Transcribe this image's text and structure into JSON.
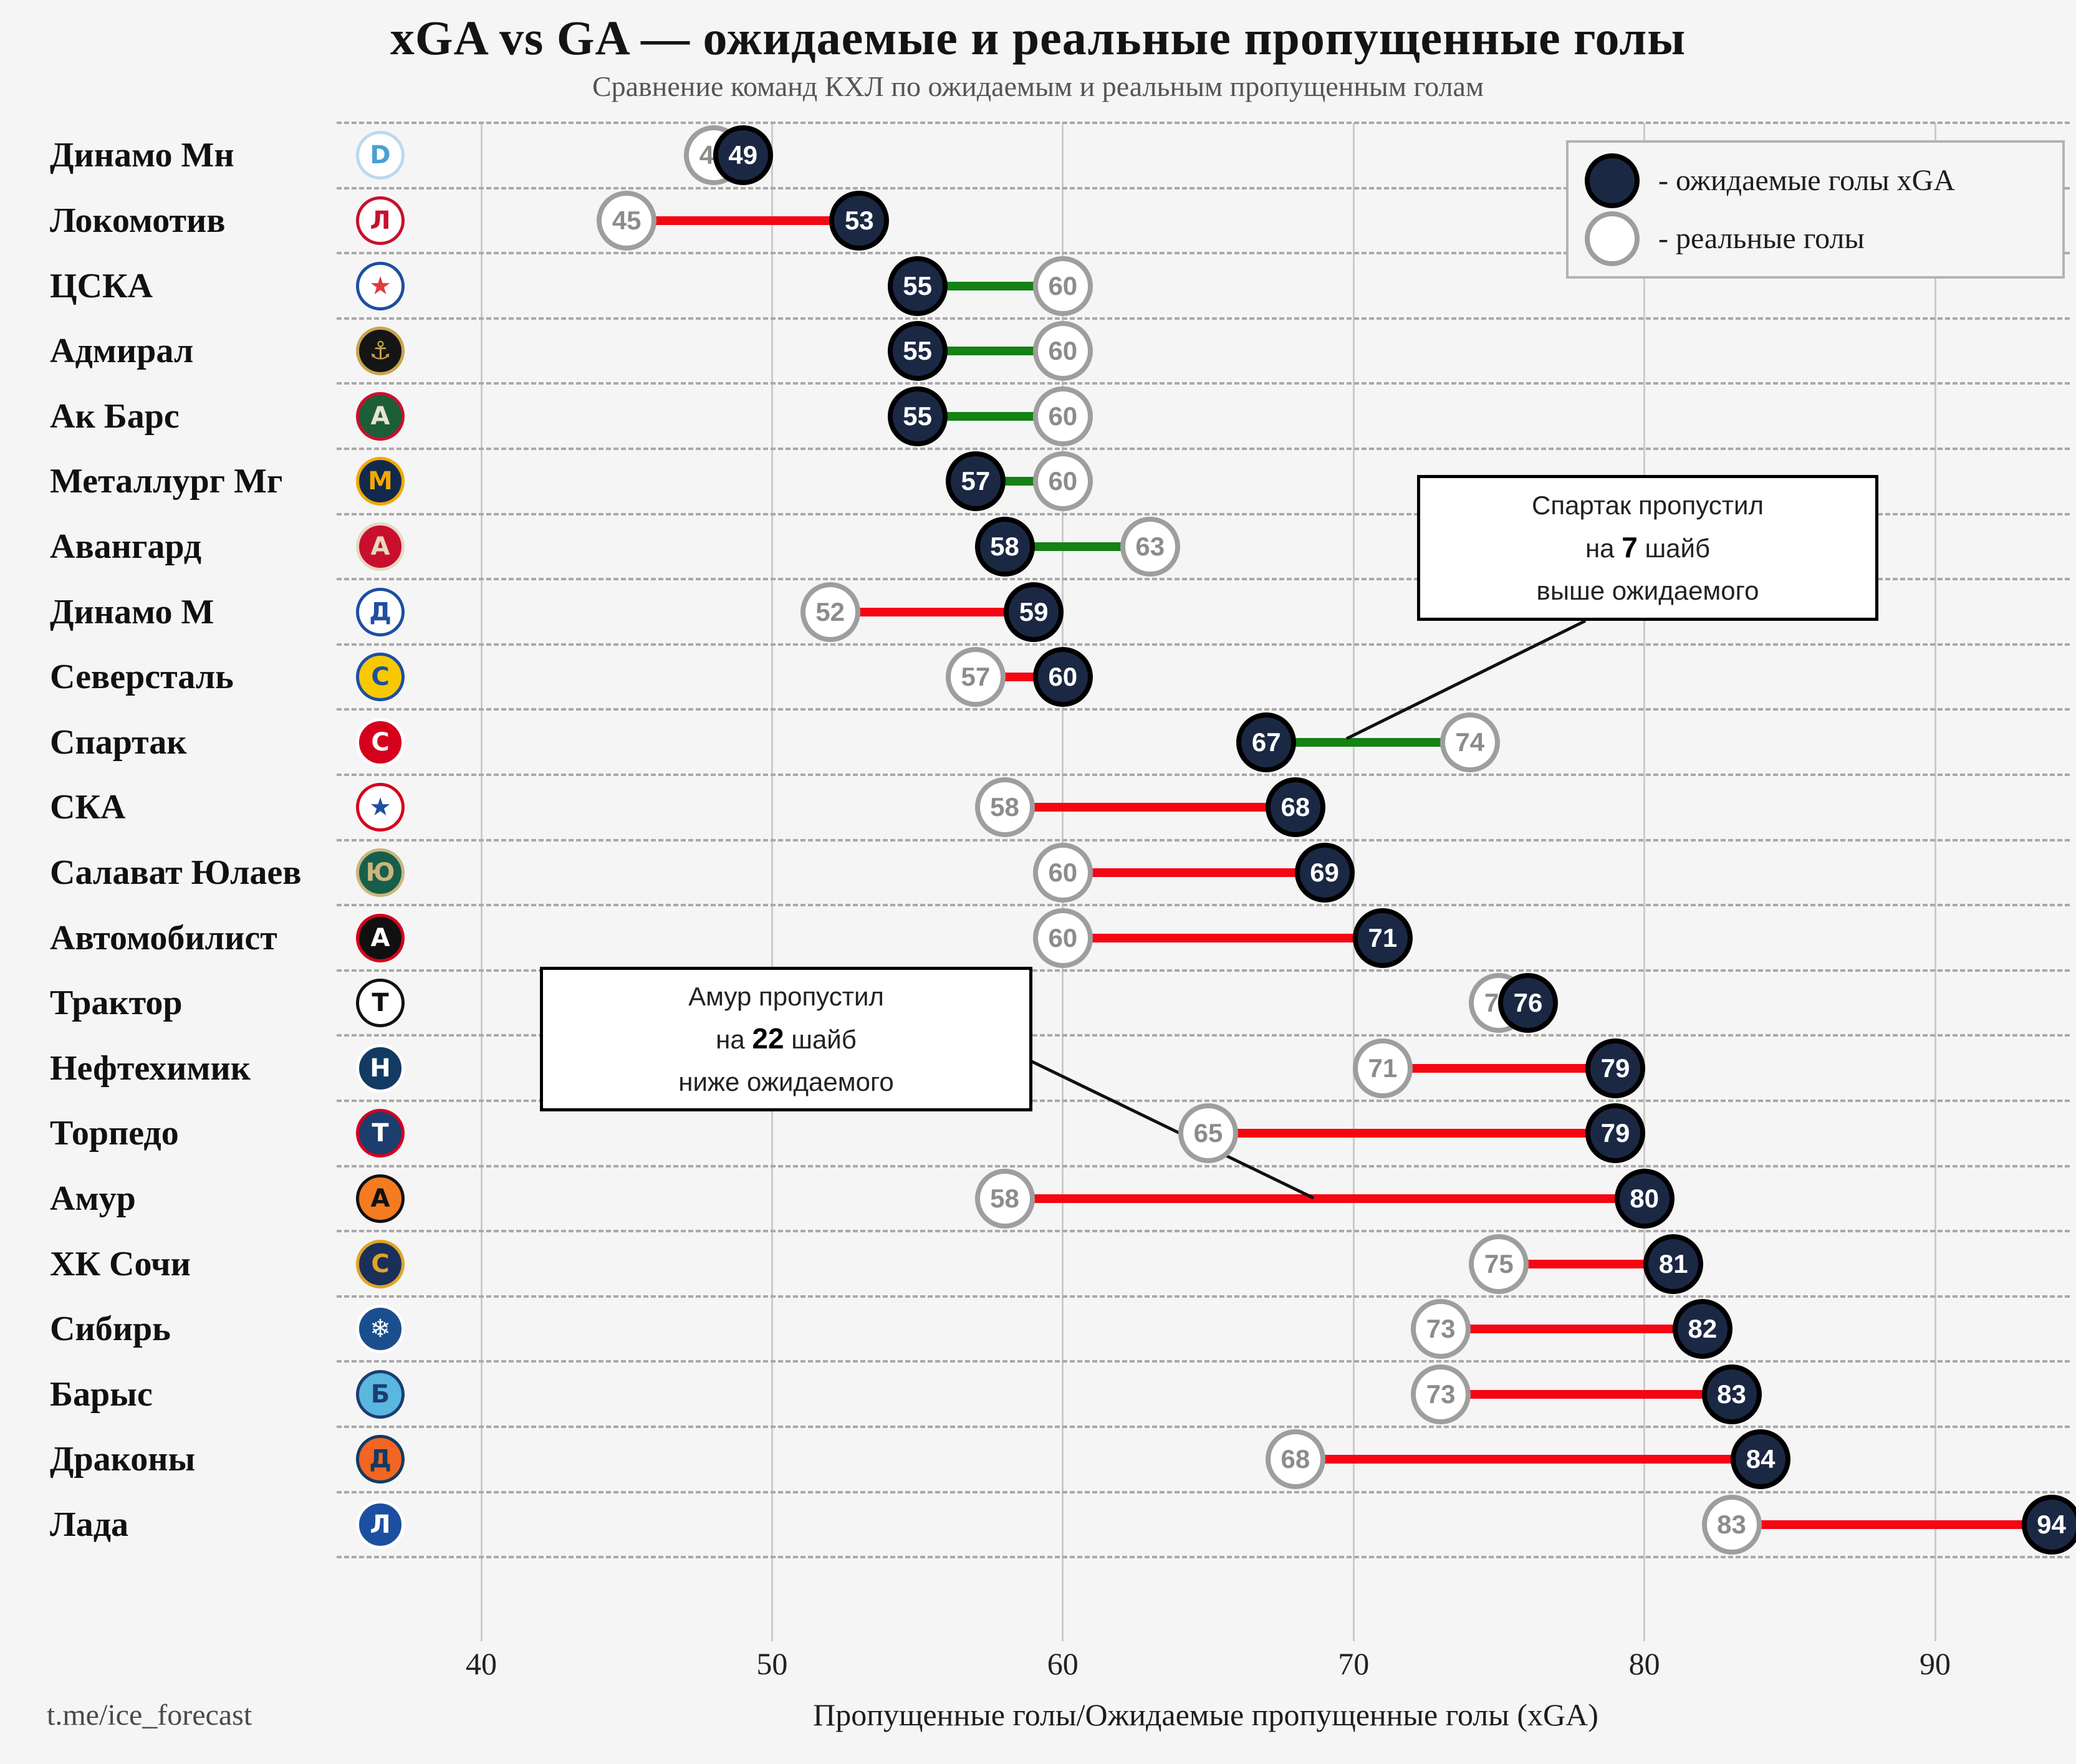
{
  "title": "xGA vs GA — ожидаемые и реальные пропущенные голы",
  "subtitle": "Сравнение команд КХЛ по ожидаемым и реальным пропущенным голам",
  "footer": "t.me/ice_forecast",
  "legend": {
    "xga_label": "- ожидаемые голы xGA",
    "ga_label": "- реальные голы"
  },
  "annotations": {
    "spartak": {
      "line1": "Спартак пропустил",
      "line2_pre": "на",
      "line2_bold": "7",
      "line2_post": "шайб",
      "line3": "выше ожидаемого"
    },
    "amur": {
      "line1": "Амур пропустил",
      "line2_pre": "на",
      "line2_bold": "22",
      "line2_post": "шайб",
      "line3": "ниже ожидаемого"
    }
  },
  "axis": {
    "xmin": 40,
    "ticks": [
      40,
      50,
      60,
      70,
      80,
      90
    ],
    "xlabel": "Пропущенные голы/Ожидаемые пропущенные голы (xGA)"
  },
  "colors": {
    "background": "#f5f5f6",
    "dark_circle": "#1b2844",
    "dark_circle_border": "#000000",
    "light_circle": "#ffffff",
    "light_circle_border": "#9e9e9e",
    "light_circle_text": "#8c8c8c",
    "red_line": "#f40612",
    "green_line": "#148214",
    "grid": "#cbcbcb",
    "separator": "#a9a9a9",
    "legend_border": "#b3b3b3",
    "annotation_border": "#000000"
  },
  "chart_data": {
    "type": "dumbbell",
    "orientation": "horizontal",
    "xlabel": "Пропущенные голы/Ожидаемые пропущенные голы (xGA)",
    "x_ticks": [
      40,
      50,
      60,
      70,
      80,
      90
    ],
    "xlim": [
      38,
      95
    ],
    "grid": true,
    "legend_position": "top-right",
    "series": [
      {
        "name": "ожидаемые голы xGA",
        "marker": "dark-circle"
      },
      {
        "name": "реальные голы",
        "marker": "white-circle"
      }
    ],
    "line_color_rule": "green if ga > xga, red if ga < xga",
    "teams": [
      {
        "name": "Динамо Мн",
        "xga": 49,
        "ga": 48,
        "logo": {
          "glyph": "D",
          "bg": "#ffffff",
          "ring": "#bcd9ee",
          "color": "#4aa0d5"
        }
      },
      {
        "name": "Локомотив",
        "xga": 53,
        "ga": 45,
        "logo": {
          "glyph": "Л",
          "bg": "#ffffff",
          "ring": "#c8102e",
          "color": "#c8102e"
        }
      },
      {
        "name": "ЦСКА",
        "xga": 55,
        "ga": 60,
        "logo": {
          "glyph": "★",
          "bg": "#ffffff",
          "ring": "#1d4fa1",
          "color": "#e03a3e"
        }
      },
      {
        "name": "Адмирал",
        "xga": 55,
        "ga": 60,
        "logo": {
          "glyph": "⚓",
          "bg": "#151515",
          "ring": "#c9a44c",
          "color": "#c9a44c"
        }
      },
      {
        "name": "Ак Барс",
        "xga": 55,
        "ga": 60,
        "logo": {
          "glyph": "А",
          "bg": "#1b5e37",
          "ring": "#c8102e",
          "color": "#e8e3d3"
        }
      },
      {
        "name": "Металлург Мг",
        "xga": 57,
        "ga": 60,
        "logo": {
          "glyph": "М",
          "bg": "#13294b",
          "ring": "#f2a900",
          "color": "#f2a900"
        }
      },
      {
        "name": "Авангард",
        "xga": 58,
        "ga": 63,
        "logo": {
          "glyph": "А",
          "bg": "#c8102e",
          "ring": "#e7d9c4",
          "color": "#e7d9c4"
        }
      },
      {
        "name": "Динамо М",
        "xga": 59,
        "ga": 52,
        "logo": {
          "glyph": "Д",
          "bg": "#ffffff",
          "ring": "#1d4fa1",
          "color": "#1d4fa1"
        }
      },
      {
        "name": "Северсталь",
        "xga": 60,
        "ga": 57,
        "logo": {
          "glyph": "С",
          "bg": "#f6c900",
          "ring": "#1d4fa1",
          "color": "#1d4fa1"
        }
      },
      {
        "name": "Спартак",
        "xga": 67,
        "ga": 74,
        "logo": {
          "glyph": "С",
          "bg": "#d6001c",
          "ring": "#ffffff",
          "color": "#ffffff"
        }
      },
      {
        "name": "СКА",
        "xga": 68,
        "ga": 58,
        "logo": {
          "glyph": "★",
          "bg": "#ffffff",
          "ring": "#d6001c",
          "color": "#1d4fa1"
        }
      },
      {
        "name": "Салават Юлаев",
        "xga": 69,
        "ga": 60,
        "logo": {
          "glyph": "Ю",
          "bg": "#175e4c",
          "ring": "#cbb67c",
          "color": "#cbb67c"
        }
      },
      {
        "name": "Автомобилист",
        "xga": 71,
        "ga": 60,
        "logo": {
          "glyph": "А",
          "bg": "#101010",
          "ring": "#d6001c",
          "color": "#ffffff"
        }
      },
      {
        "name": "Трактор",
        "xga": 76,
        "ga": 75,
        "logo": {
          "glyph": "Т",
          "bg": "#ffffff",
          "ring": "#111111",
          "color": "#111111"
        }
      },
      {
        "name": "Нефтехимик",
        "xga": 79,
        "ga": 71,
        "logo": {
          "glyph": "Н",
          "bg": "#123a63",
          "ring": "#ffffff",
          "color": "#ffffff"
        }
      },
      {
        "name": "Торпедо",
        "xga": 79,
        "ga": 65,
        "logo": {
          "glyph": "Т",
          "bg": "#1b3e6f",
          "ring": "#d6001c",
          "color": "#ffffff"
        }
      },
      {
        "name": "Амур",
        "xga": 80,
        "ga": 58,
        "logo": {
          "glyph": "А",
          "bg": "#f47b20",
          "ring": "#111111",
          "color": "#111111"
        }
      },
      {
        "name": "ХК Сочи",
        "xga": 81,
        "ga": 75,
        "logo": {
          "glyph": "С",
          "bg": "#1b2f5b",
          "ring": "#e0a526",
          "color": "#e0a526"
        }
      },
      {
        "name": "Сибирь",
        "xga": 82,
        "ga": 73,
        "logo": {
          "glyph": "❄",
          "bg": "#1b4e8f",
          "ring": "#ffffff",
          "color": "#ffffff"
        }
      },
      {
        "name": "Барыс",
        "xga": 83,
        "ga": 73,
        "logo": {
          "glyph": "Б",
          "bg": "#59b7e0",
          "ring": "#1b3e6f",
          "color": "#1b3e6f"
        }
      },
      {
        "name": "Драконы",
        "xga": 84,
        "ga": 68,
        "logo": {
          "glyph": "Д",
          "bg": "#f26522",
          "ring": "#123a63",
          "color": "#123a63"
        }
      },
      {
        "name": "Лада",
        "xga": 94,
        "ga": 83,
        "logo": {
          "glyph": "Л",
          "bg": "#1d4fa1",
          "ring": "#ffffff",
          "color": "#ffffff"
        }
      }
    ]
  }
}
